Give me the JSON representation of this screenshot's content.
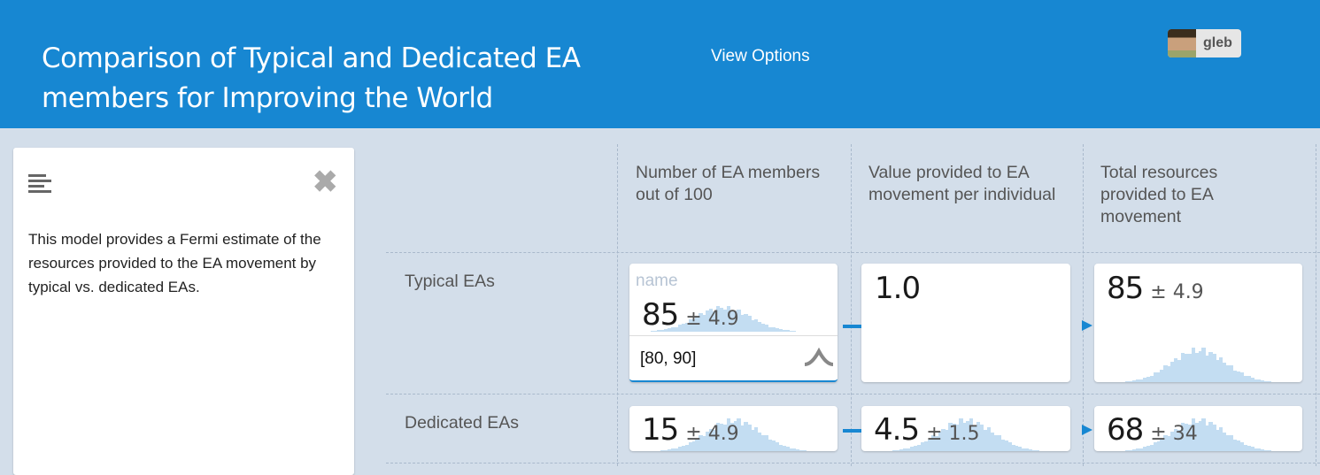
{
  "header": {
    "title": "Comparison of Typical and Dedicated EA members for Improving the World",
    "view_options": "View Options",
    "user": "gleb"
  },
  "sidebar": {
    "description": "This model provides a Fermi estimate of the resources provided to the EA movement by typical vs. dedicated EAs."
  },
  "columns": [
    "Number of EA members out of 100",
    "Value provided to EA movement per individual",
    "Total resources provided to EA movement"
  ],
  "rows": [
    {
      "label": "Typical EAs",
      "cells": [
        {
          "name_placeholder": "name",
          "value": "85",
          "pm": "± 4.9",
          "input": "[80, 90]",
          "mean": 85,
          "sd": 4.9
        },
        {
          "value": "1.0",
          "pm": null
        },
        {
          "value": "85",
          "pm": "± 4.9",
          "mean": 85,
          "sd": 4.9
        }
      ]
    },
    {
      "label": "Dedicated EAs",
      "cells": [
        {
          "value": "15",
          "pm": "± 4.9",
          "mean": 15,
          "sd": 4.9
        },
        {
          "value": "4.5",
          "pm": "± 1.5",
          "mean": 4.5,
          "sd": 1.5
        },
        {
          "value": "68",
          "pm": "± 34",
          "mean": 68,
          "sd": 34
        }
      ]
    }
  ],
  "colors": {
    "header": "#1787d2",
    "background": "#d3deea",
    "histogram": "#c3ddf2"
  }
}
